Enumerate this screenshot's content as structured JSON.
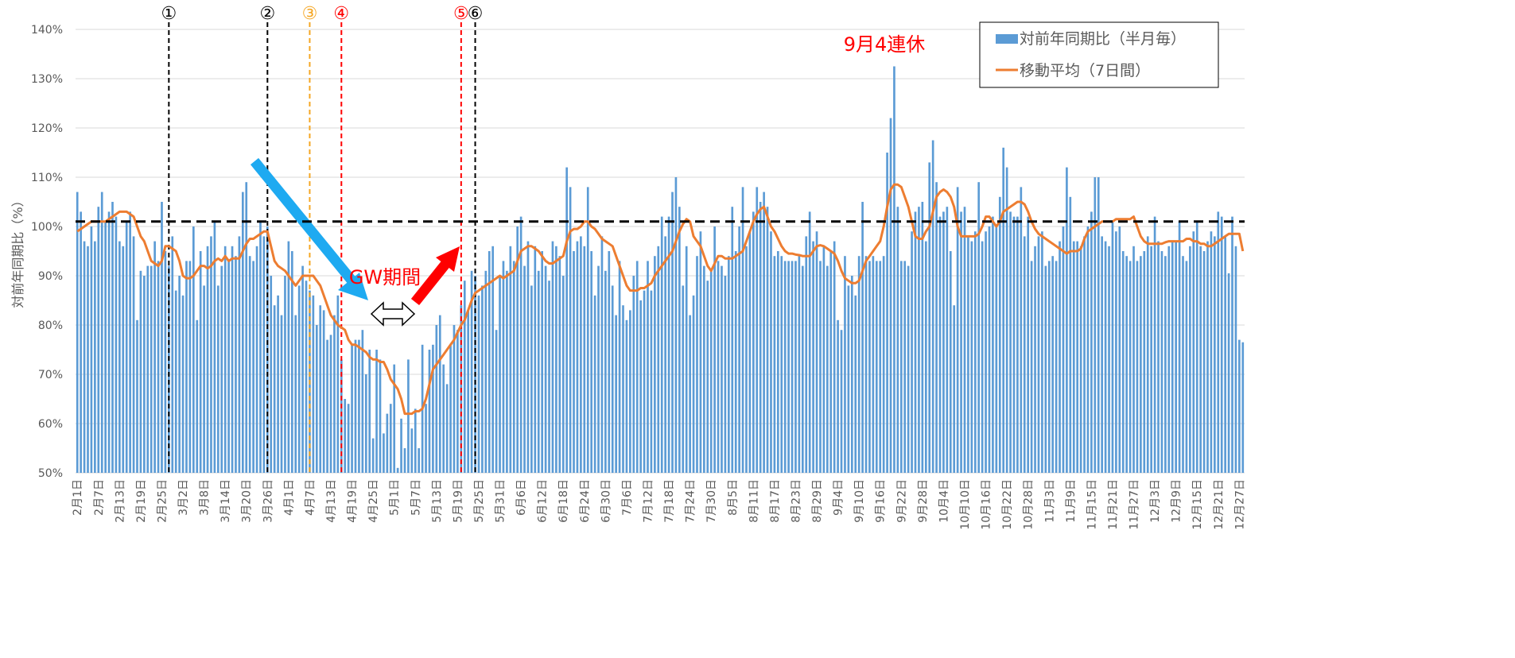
{
  "chart_data": {
    "type": "bar",
    "y_label": "対前年同期比（%）",
    "categories": [
      "2月1日",
      null,
      null,
      null,
      null,
      null,
      "2月7日",
      null,
      null,
      null,
      null,
      null,
      "2月13日",
      null,
      null,
      null,
      null,
      null,
      "2月19日",
      null,
      null,
      null,
      null,
      null,
      "2月25日",
      null,
      null,
      null,
      null,
      null,
      "3月2日",
      null,
      null,
      null,
      null,
      null,
      "3月8日",
      null,
      null,
      null,
      null,
      null,
      "3月14日",
      null,
      null,
      null,
      null,
      null,
      "3月20日",
      null,
      null,
      null,
      null,
      null,
      "3月26日",
      null,
      null,
      null,
      null,
      null,
      "4月1日",
      null,
      null,
      null,
      null,
      null,
      "4月7日",
      null,
      null,
      null,
      null,
      null,
      "4月13日",
      null,
      null,
      null,
      null,
      null,
      "4月19日",
      null,
      null,
      null,
      null,
      null,
      "4月25日",
      null,
      null,
      null,
      null,
      null,
      "5月1日",
      null,
      null,
      null,
      null,
      null,
      "5月7日",
      null,
      null,
      null,
      null,
      null,
      "5月13日",
      null,
      null,
      null,
      null,
      null,
      "5月19日",
      null,
      null,
      null,
      null,
      null,
      "5月25日",
      null,
      null,
      null,
      null,
      null,
      "5月31日",
      null,
      null,
      null,
      null,
      null,
      "6月6日",
      null,
      null,
      null,
      null,
      null,
      "6月12日",
      null,
      null,
      null,
      null,
      null,
      "6月18日",
      null,
      null,
      null,
      null,
      null,
      "6月24日",
      null,
      null,
      null,
      null,
      null,
      "6月30日",
      null,
      null,
      null,
      null,
      null,
      "7月6日",
      null,
      null,
      null,
      null,
      null,
      "7月12日",
      null,
      null,
      null,
      null,
      null,
      "7月18日",
      null,
      null,
      null,
      null,
      null,
      "7月24日",
      null,
      null,
      null,
      null,
      null,
      "7月30日",
      null,
      null,
      null,
      null,
      null,
      "8月5日",
      null,
      null,
      null,
      null,
      null,
      "8月11日",
      null,
      null,
      null,
      null,
      null,
      "8月17日",
      null,
      null,
      null,
      null,
      null,
      "8月23日",
      null,
      null,
      null,
      null,
      null,
      "8月29日",
      null,
      null,
      null,
      null,
      null,
      "9月4日",
      null,
      null,
      null,
      null,
      null,
      "9月10日",
      null,
      null,
      null,
      null,
      null,
      "9月16日",
      null,
      null,
      null,
      null,
      null,
      "9月22日",
      null,
      null,
      null,
      null,
      null,
      "9月28日",
      null,
      null,
      null,
      null,
      null,
      "10月4日",
      null,
      null,
      null,
      null,
      null,
      "10月10日",
      null,
      null,
      null,
      null,
      null,
      "10月16日",
      null,
      null,
      null,
      null,
      null,
      "10月22日",
      null,
      null,
      null,
      null,
      null,
      "10月28日",
      null,
      null,
      null,
      null,
      null,
      "11月3日",
      null,
      null,
      null,
      null,
      null,
      "11月9日",
      null,
      null,
      null,
      null,
      null,
      "11月15日",
      null,
      null,
      null,
      null,
      null,
      "11月21日",
      null,
      null,
      null,
      null,
      null,
      "11月27日",
      null,
      null,
      null,
      null,
      null,
      "12月3日",
      null,
      null,
      null,
      null,
      null,
      "12月9日",
      null,
      null,
      null,
      null,
      null,
      "12月15日",
      null,
      null,
      null,
      null,
      null,
      "12月21日",
      null,
      null,
      null,
      null,
      null,
      "12月27日",
      null
    ],
    "series": [
      {
        "name": "対前年同期比（半月毎）",
        "type": "bar",
        "color": "#5b9bd5",
        "values": [
          107,
          103,
          97,
          96,
          100,
          97,
          104,
          107,
          101,
          103,
          105,
          102,
          97,
          96,
          101,
          103,
          98,
          81,
          91,
          90,
          92,
          92,
          97,
          93,
          105,
          95,
          92,
          98,
          87,
          90,
          86,
          93,
          93,
          100,
          81,
          95,
          88,
          96,
          98,
          101,
          88,
          92,
          96,
          93,
          96,
          94,
          98,
          107,
          109,
          94,
          93,
          96,
          101,
          98,
          100,
          90,
          84,
          86,
          82,
          90,
          97,
          95,
          82,
          88,
          92,
          89,
          87,
          86,
          80,
          84,
          83,
          77,
          78,
          82,
          86,
          73,
          65,
          64,
          76,
          77,
          77,
          79,
          70,
          75,
          57,
          75,
          73,
          58,
          62,
          64,
          72,
          51,
          61,
          55,
          73,
          59,
          63,
          55,
          76,
          64,
          75,
          76,
          80,
          82,
          72,
          68,
          76,
          80,
          79,
          84,
          89,
          83,
          91,
          90,
          86,
          88,
          91,
          95,
          96,
          79,
          90,
          93,
          91,
          96,
          93,
          100,
          102,
          92,
          97,
          88,
          96,
          91,
          95,
          92,
          89,
          97,
          96,
          94,
          90,
          112,
          108,
          95,
          97,
          98,
          96,
          108,
          95,
          86,
          92,
          98,
          91,
          95,
          88,
          82,
          93,
          84,
          81,
          83,
          90,
          93,
          85,
          87,
          93,
          87,
          94,
          96,
          102,
          98,
          102,
          107,
          110,
          104,
          88,
          96,
          82,
          86,
          94,
          99,
          92,
          89,
          91,
          100,
          93,
          92,
          90,
          94,
          104,
          95,
          100,
          108,
          96,
          99,
          103,
          108,
          105,
          107,
          104,
          99,
          94,
          95,
          94,
          93,
          93,
          93,
          93,
          94,
          92,
          98,
          103,
          97,
          99,
          93,
          96,
          92,
          95,
          97,
          81,
          79,
          94,
          88,
          90,
          86,
          94,
          105,
          94,
          93,
          94,
          93,
          93,
          94,
          115,
          122,
          132.5,
          104,
          93,
          93,
          92,
          99,
          103,
          104,
          105,
          97,
          113,
          117.5,
          109,
          102,
          103,
          104,
          95,
          84,
          108,
          103,
          104,
          98,
          97,
          99,
          109,
          97,
          99,
          100,
          102,
          100,
          106,
          116,
          112,
          103,
          102,
          102,
          108,
          98,
          102,
          93,
          96,
          98,
          99,
          92,
          93,
          94,
          93,
          97,
          100,
          112,
          106,
          97,
          97,
          96,
          98,
          100,
          103,
          110,
          110,
          98,
          97,
          96,
          101,
          99,
          100,
          95,
          94,
          93,
          96,
          93,
          94,
          95,
          98,
          96,
          102,
          97,
          95,
          94,
          96,
          97,
          97,
          101,
          94,
          93,
          96,
          99,
          101,
          96,
          95,
          97,
          99,
          98,
          103,
          102,
          98,
          90.5,
          102,
          96,
          77,
          76.5
        ]
      },
      {
        "name": "移動平均（7日間）",
        "type": "line",
        "color": "#ed7d31",
        "values": [
          99,
          99.5,
          100,
          100.5,
          101,
          101,
          101,
          101,
          101,
          101.5,
          102,
          102.5,
          103,
          103,
          103,
          102.5,
          102,
          100,
          98,
          97,
          95,
          93,
          92.5,
          92,
          93,
          96,
          96,
          95.5,
          95,
          93,
          90,
          89.5,
          89.5,
          90,
          91,
          92,
          92,
          91.5,
          92,
          93,
          93.5,
          93,
          94,
          93,
          93.5,
          93.5,
          93.5,
          95,
          96.5,
          97.5,
          97.5,
          98,
          98.5,
          99,
          99,
          96,
          93,
          92,
          91.5,
          91,
          90,
          89,
          88,
          89,
          90,
          90,
          90,
          90,
          89,
          88,
          86,
          84,
          82,
          81,
          80,
          79.5,
          79,
          77,
          76,
          76,
          75.5,
          75,
          74.5,
          73.5,
          73,
          73,
          72.5,
          72.5,
          71,
          69,
          68,
          67,
          65,
          62,
          62,
          62,
          62.5,
          62.5,
          63,
          65,
          68,
          71,
          72,
          73,
          74,
          75,
          76,
          77,
          78.5,
          80,
          81,
          83,
          85,
          86.5,
          87,
          87.5,
          88,
          88.5,
          89,
          89.5,
          90,
          89.5,
          90,
          90.5,
          91,
          93,
          95,
          95.5,
          96,
          96,
          95.5,
          95,
          94,
          93,
          92.5,
          92.5,
          93,
          93.5,
          94,
          97,
          99,
          99.5,
          99.5,
          100,
          101,
          101,
          100,
          99.5,
          98.5,
          97.5,
          97,
          96.5,
          96,
          94,
          92,
          90,
          88,
          87,
          87,
          87,
          87.5,
          87.5,
          88,
          88.5,
          90,
          91,
          92,
          93,
          94,
          95,
          97,
          99,
          100.5,
          101.5,
          101,
          98,
          97,
          96,
          94,
          92,
          91,
          92.5,
          94,
          94,
          93.5,
          93.5,
          93.5,
          94,
          94.5,
          95,
          97,
          99,
          101,
          102.5,
          103.5,
          104,
          102,
          100,
          99,
          97.5,
          96,
          95,
          94.5,
          94.5,
          94.3,
          94.2,
          94,
          94,
          94,
          95,
          96,
          96.2,
          96,
          95.5,
          95,
          94.5,
          93,
          91,
          89.5,
          89,
          88.5,
          88.5,
          89,
          91,
          93,
          94,
          95,
          96,
          97,
          100,
          104,
          107.5,
          108.5,
          108.5,
          108,
          106,
          104,
          101,
          98,
          97.5,
          97.5,
          99,
          100,
          103,
          106,
          107,
          107.5,
          107,
          106,
          104,
          100,
          98,
          98,
          98,
          98,
          98,
          98.5,
          100,
          102,
          102,
          101,
          100,
          101,
          103,
          103.5,
          104,
          104.5,
          105,
          105,
          104.5,
          103,
          101,
          99.5,
          98.5,
          98,
          97.5,
          97,
          96.5,
          96,
          95.5,
          95,
          94.5,
          95,
          95,
          95,
          95.5,
          97.5,
          99,
          99.5,
          100,
          100.5,
          101,
          101,
          101,
          101,
          101.5,
          101.5,
          101.5,
          101.5,
          101.5,
          102,
          100,
          98,
          97,
          96.5,
          96.5,
          96.5,
          96.5,
          96.5,
          96.8,
          97,
          97,
          97,
          97,
          97,
          97.5,
          97.5,
          97,
          97,
          96.5,
          96.5,
          96,
          96,
          96.5,
          97,
          97.5,
          98,
          98.5,
          98.5,
          98.5,
          98.5,
          95
        ]
      }
    ],
    "ylim": [
      50,
      140
    ],
    "yticks": [
      {
        "value": 50,
        "label": "50%"
      },
      {
        "value": 60,
        "label": "60%"
      },
      {
        "value": 70,
        "label": "70%"
      },
      {
        "value": 80,
        "label": "80%"
      },
      {
        "value": 90,
        "label": "90%"
      },
      {
        "value": 100,
        "label": "100%"
      },
      {
        "value": 110,
        "label": "110%"
      },
      {
        "value": 120,
        "label": "120%"
      },
      {
        "value": 130,
        "label": "130%"
      },
      {
        "value": 140,
        "label": "140%"
      }
    ],
    "grid": true,
    "reference_line": 101,
    "markers": [
      "①",
      "②",
      "③",
      "④",
      "⑤",
      "⑥"
    ],
    "annotations": [
      "9月4連休",
      "GW期間"
    ]
  }
}
